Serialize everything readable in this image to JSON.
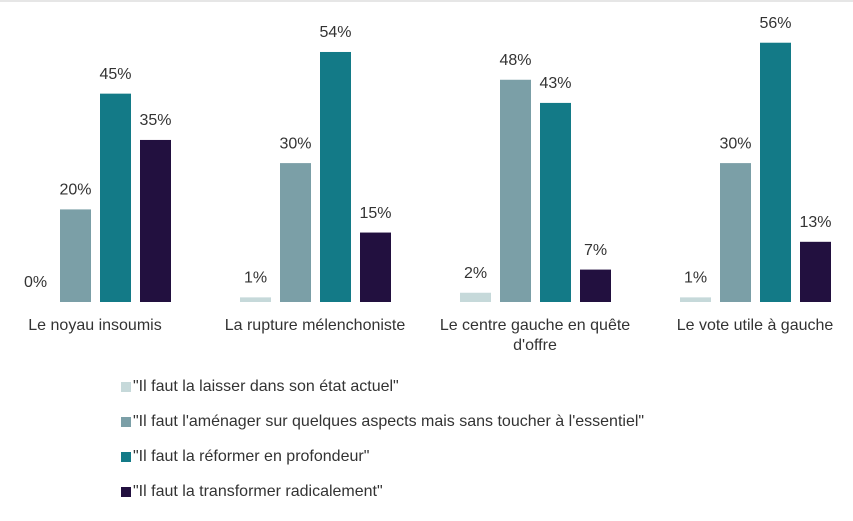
{
  "chart_data": {
    "type": "bar",
    "categories": [
      "Le noyau insoumis",
      "La rupture mélenchoniste",
      "Le centre gauche en quête d'offre",
      "Le vote utile à gauche"
    ],
    "series": [
      {
        "name": "\"Il faut la laisser dans son état actuel\"",
        "color": "#c6d9da",
        "values": [
          0,
          1,
          2,
          1
        ],
        "value_labels": [
          "0%",
          "1%",
          "2%",
          "1%"
        ]
      },
      {
        "name": "\"Il faut l'aménager sur quelques aspects mais sans toucher à l'essentiel\"",
        "color": "#7b9fa7",
        "values": [
          20,
          30,
          48,
          30
        ],
        "value_labels": [
          "20%",
          "30%",
          "48%",
          "30%"
        ]
      },
      {
        "name": "\"Il faut la réformer en profondeur\"",
        "color": "#137a87",
        "values": [
          45,
          54,
          43,
          56
        ],
        "value_labels": [
          "45%",
          "54%",
          "43%",
          "56%"
        ]
      },
      {
        "name": "\"Il faut la transformer radicalement\"",
        "color": "#22103f",
        "values": [
          35,
          15,
          7,
          13
        ],
        "value_labels": [
          "35%",
          "15%",
          "7%",
          "13%"
        ]
      }
    ],
    "legend": "bottom"
  }
}
